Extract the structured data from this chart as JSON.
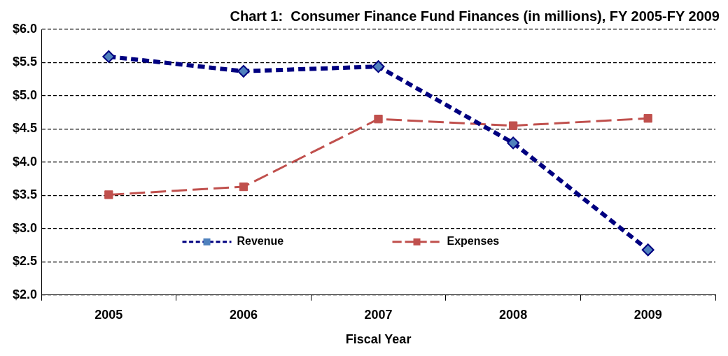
{
  "chart_data": {
    "type": "line",
    "title": "Chart 1:  Consumer Finance Fund Finances (in millions), FY 2005-FY 2009",
    "xlabel": "Fiscal Year",
    "categories": [
      "2005",
      "2006",
      "2007",
      "2008",
      "2009"
    ],
    "series": [
      {
        "name": "Revenue",
        "color": "#000080",
        "values": [
          5.59,
          5.37,
          5.44,
          4.29,
          2.68
        ],
        "marker": "diamond",
        "line_style": "dashed"
      },
      {
        "name": "Expenses",
        "color": "#c0504d",
        "values": [
          3.51,
          3.63,
          4.65,
          4.55,
          4.66
        ],
        "marker": "square",
        "line_style": "dashed"
      }
    ],
    "ylim": [
      2.0,
      6.0
    ],
    "yticks": [
      {
        "value": 2.0,
        "label": "$2.0"
      },
      {
        "value": 2.5,
        "label": "$2.5"
      },
      {
        "value": 3.0,
        "label": "$3.0"
      },
      {
        "value": 3.5,
        "label": "$3.5"
      },
      {
        "value": 4.0,
        "label": "$4.0"
      },
      {
        "value": 4.5,
        "label": "$4.5"
      },
      {
        "value": 5.0,
        "label": "$5.0"
      },
      {
        "value": 5.5,
        "label": "$5.5"
      },
      {
        "value": 6.0,
        "label": "$6.0"
      }
    ],
    "grid": "y",
    "legend": "bottom"
  }
}
